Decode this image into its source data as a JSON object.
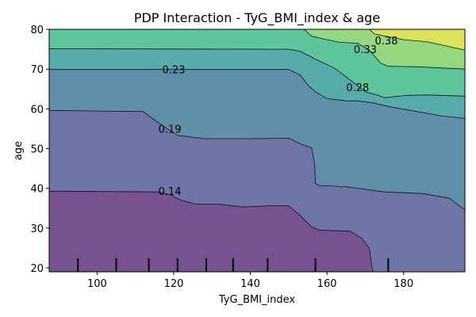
{
  "chart_data": {
    "type": "contour",
    "title": "PDP Interaction - TyG_BMI_index & age",
    "xlabel": "TyG_BMI_index",
    "ylabel": "age",
    "xlim": [
      87.5,
      196
    ],
    "ylim": [
      19,
      80
    ],
    "x_ticks": [
      100,
      120,
      140,
      160,
      180
    ],
    "y_ticks": [
      20,
      30,
      40,
      50,
      60,
      70,
      80
    ],
    "colormap": "viridis",
    "band_colors": [
      "#765290",
      "#6e76a7",
      "#5e91a8",
      "#55acab",
      "#5ec59c",
      "#93d87e",
      "#dce35a"
    ],
    "levels": [
      0.14,
      0.19,
      0.23,
      0.28,
      0.33,
      0.38
    ],
    "contour_lines": [
      {
        "level": 0.14,
        "label": "0.14",
        "label_at": [
          119,
          39.3
        ],
        "points": [
          [
            87.5,
            39.3
          ],
          [
            116,
            39.1
          ],
          [
            119,
            38.4
          ],
          [
            122,
            37.0
          ],
          [
            126,
            36.0
          ],
          [
            132,
            36.0
          ],
          [
            138,
            35.3
          ],
          [
            145,
            35.6
          ],
          [
            150,
            35.6
          ],
          [
            153,
            33.2
          ],
          [
            156,
            30.3
          ],
          [
            158,
            29.5
          ],
          [
            166,
            29.2
          ],
          [
            169,
            27.5
          ],
          [
            171,
            25.0
          ],
          [
            172,
            19.0
          ]
        ]
      },
      {
        "level": 0.19,
        "label": "0.19",
        "label_at": [
          119,
          55.0
        ],
        "points": [
          [
            87.5,
            59.6
          ],
          [
            112,
            59.3
          ],
          [
            116,
            56.5
          ],
          [
            121,
            53.3
          ],
          [
            128,
            52.5
          ],
          [
            140,
            52.5
          ],
          [
            150,
            52.6
          ],
          [
            153,
            51.2
          ],
          [
            156,
            50.2
          ],
          [
            156.8,
            46.0
          ],
          [
            157,
            41.2
          ],
          [
            158,
            40.7
          ],
          [
            165,
            40.4
          ],
          [
            175,
            39.1
          ],
          [
            185,
            38.7
          ],
          [
            192,
            37.5
          ],
          [
            194,
            36.0
          ],
          [
            196,
            34.5
          ]
        ]
      },
      {
        "level": 0.23,
        "label": "0.23",
        "label_at": [
          120,
          69.9
        ],
        "points": [
          [
            87.5,
            69.9
          ],
          [
            150,
            69.9
          ],
          [
            153,
            68.5
          ],
          [
            155,
            66.0
          ],
          [
            157,
            64.3
          ],
          [
            160,
            62.6
          ],
          [
            165,
            62.0
          ],
          [
            168,
            62.0
          ],
          [
            172,
            61.5
          ],
          [
            177,
            60.4
          ],
          [
            183,
            59.4
          ],
          [
            190,
            58.2
          ],
          [
            196,
            57.6
          ]
        ]
      },
      {
        "level": 0.28,
        "label": "0.28",
        "label_at": [
          168,
          65.4
        ],
        "points": [
          [
            87.5,
            75.1
          ],
          [
            150,
            75.0
          ],
          [
            153,
            74.5
          ],
          [
            157,
            72.5
          ],
          [
            162,
            70.2
          ],
          [
            167,
            66.6
          ],
          [
            170,
            64.3
          ],
          [
            173,
            63.5
          ],
          [
            175,
            62.8
          ],
          [
            181,
            63.4
          ],
          [
            186,
            63.5
          ],
          [
            196,
            63.2
          ]
        ]
      },
      {
        "level": 0.33,
        "label": "0.33",
        "label_at": [
          170,
          75.0
        ],
        "points": [
          [
            154,
            80.0
          ],
          [
            156,
            78.3
          ],
          [
            159,
            77.6
          ],
          [
            163,
            76.8
          ],
          [
            168,
            76.5
          ],
          [
            171,
            74.8
          ],
          [
            174,
            71.5
          ],
          [
            176,
            70.7
          ],
          [
            183,
            70.6
          ],
          [
            196,
            70.0
          ]
        ]
      },
      {
        "level": 0.38,
        "label": "0.38",
        "label_at": [
          175.5,
          77.2
        ],
        "points": [
          [
            171,
            80.0
          ],
          [
            172.5,
            78.8
          ],
          [
            180,
            77.4
          ],
          [
            186,
            76.9
          ],
          [
            196,
            74.8
          ]
        ]
      }
    ],
    "rug_x": [
      95,
      105,
      113.5,
      121,
      128.5,
      135.5,
      144.5,
      157,
      176
    ],
    "grid": false,
    "legend": "none"
  }
}
